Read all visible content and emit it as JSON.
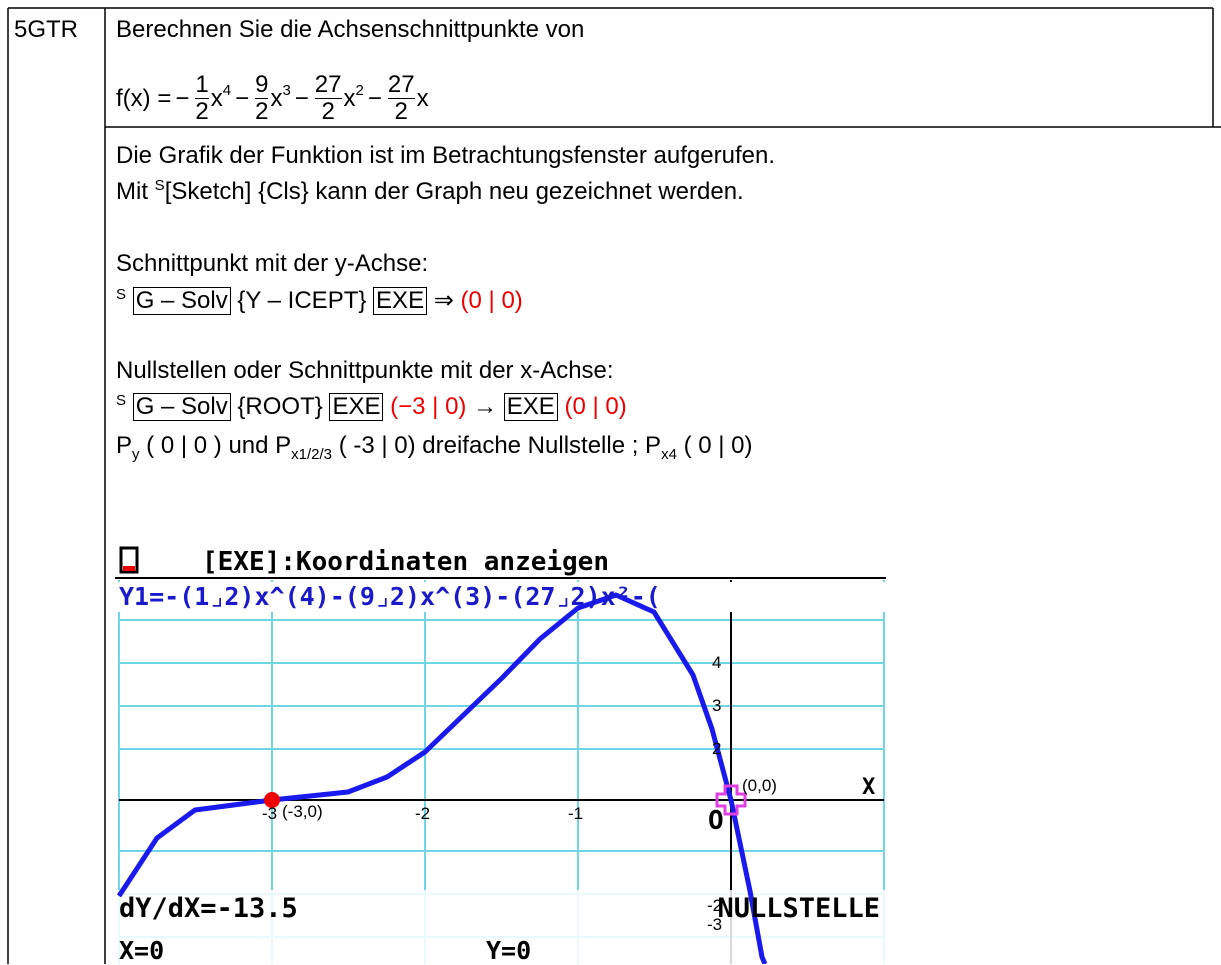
{
  "table": {
    "label": "5GTR",
    "task": {
      "text": "Berechnen Sie die Achsenschnittpunkte von",
      "formula": {
        "lhs": "f(x) =",
        "terms": [
          {
            "sign": "−",
            "num": "1",
            "den": "2",
            "var": "x",
            "exp": "4"
          },
          {
            "sign": "−",
            "num": "9",
            "den": "2",
            "var": "x",
            "exp": "3"
          },
          {
            "sign": "−",
            "num": "27",
            "den": "2",
            "var": "x",
            "exp": "2"
          },
          {
            "sign": "−",
            "num": "27",
            "den": "2",
            "var": "x"
          }
        ]
      }
    },
    "solution": {
      "line1": "Die Grafik der Funktion ist im Betrachtungsfenster aufgerufen.",
      "line2": {
        "pre": "Mit ",
        "sup": "S",
        "text": "[Sketch] {Cls} kann der Graph neu gezeichnet werden."
      },
      "y_heading": "Schnittpunkt mit der y-Achse:",
      "y_keys": {
        "shift": "S",
        "key1": "G – Solv",
        "menu": "{Y – ICEPT}",
        "key2": "EXE",
        "arrow": "⇒",
        "result": "(0 | 0)"
      },
      "x_heading": "Nullstellen oder Schnittpunkte mit der x-Achse:",
      "x_keys": {
        "shift": "S",
        "key1": "G – Solv",
        "menu": "{ROOT}",
        "key2": "EXE",
        "result1": "(−3 | 0)",
        "arrow": "→",
        "key3": "EXE",
        "result2": "(0 | 0)"
      },
      "summary": {
        "p1": "P",
        "s1": "y",
        "t1": " ( 0 | 0 ) und P",
        "s2": "x1/2/3",
        "t2": " ( -3 | 0) dreifache Nullstelle ; P",
        "s3": "x4",
        "t3": " ( 0 | 0)"
      }
    },
    "screen": {
      "header": "[EXE]:Koordinaten anzeigen",
      "expression": "Y1=-(1⌟2)x^(4)-(9⌟2)x^(3)-(27⌟2)x²-(",
      "x_axis": "X",
      "origin": "O",
      "point_origin": "(0,0)",
      "point_root": "(-3,0)",
      "x_ticks": [
        "-3",
        "-2",
        "-1"
      ],
      "y_ticks": [
        "4",
        "3",
        "2",
        "-2",
        "-3"
      ],
      "derivative": "dY/dX=-13.5",
      "mode": "NULLSTELLE",
      "x_value": "X=0",
      "y_value": "Y=0"
    }
  }
}
